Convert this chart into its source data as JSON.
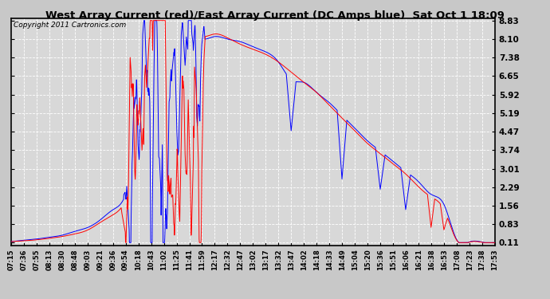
{
  "title": "West Array Current (red)/East Array Current (DC Amps blue)  Sat Oct 1 18:09",
  "copyright": "Copyright 2011 Cartronics.com",
  "yticks": [
    8.83,
    8.1,
    7.38,
    6.65,
    5.92,
    5.19,
    4.47,
    3.74,
    3.01,
    2.29,
    1.56,
    0.83,
    0.11
  ],
  "ymin": 0.11,
  "ymax": 8.83,
  "xtick_labels": [
    "07:15",
    "07:36",
    "07:55",
    "08:13",
    "08:30",
    "08:48",
    "09:03",
    "09:21",
    "09:36",
    "09:54",
    "10:18",
    "10:43",
    "11:02",
    "11:25",
    "11:41",
    "11:59",
    "12:17",
    "12:32",
    "12:47",
    "13:02",
    "13:17",
    "13:32",
    "13:47",
    "14:02",
    "14:18",
    "14:33",
    "14:49",
    "15:04",
    "15:20",
    "15:36",
    "15:51",
    "16:06",
    "16:21",
    "16:38",
    "16:53",
    "17:08",
    "17:23",
    "17:38",
    "17:53"
  ],
  "bg_color": "#c8c8c8",
  "plot_bg_color": "#d8d8d8",
  "grid_color": "#ffffff",
  "red_color": "#ff0000",
  "blue_color": "#0000ff",
  "title_color": "#000000",
  "border_color": "#000000"
}
